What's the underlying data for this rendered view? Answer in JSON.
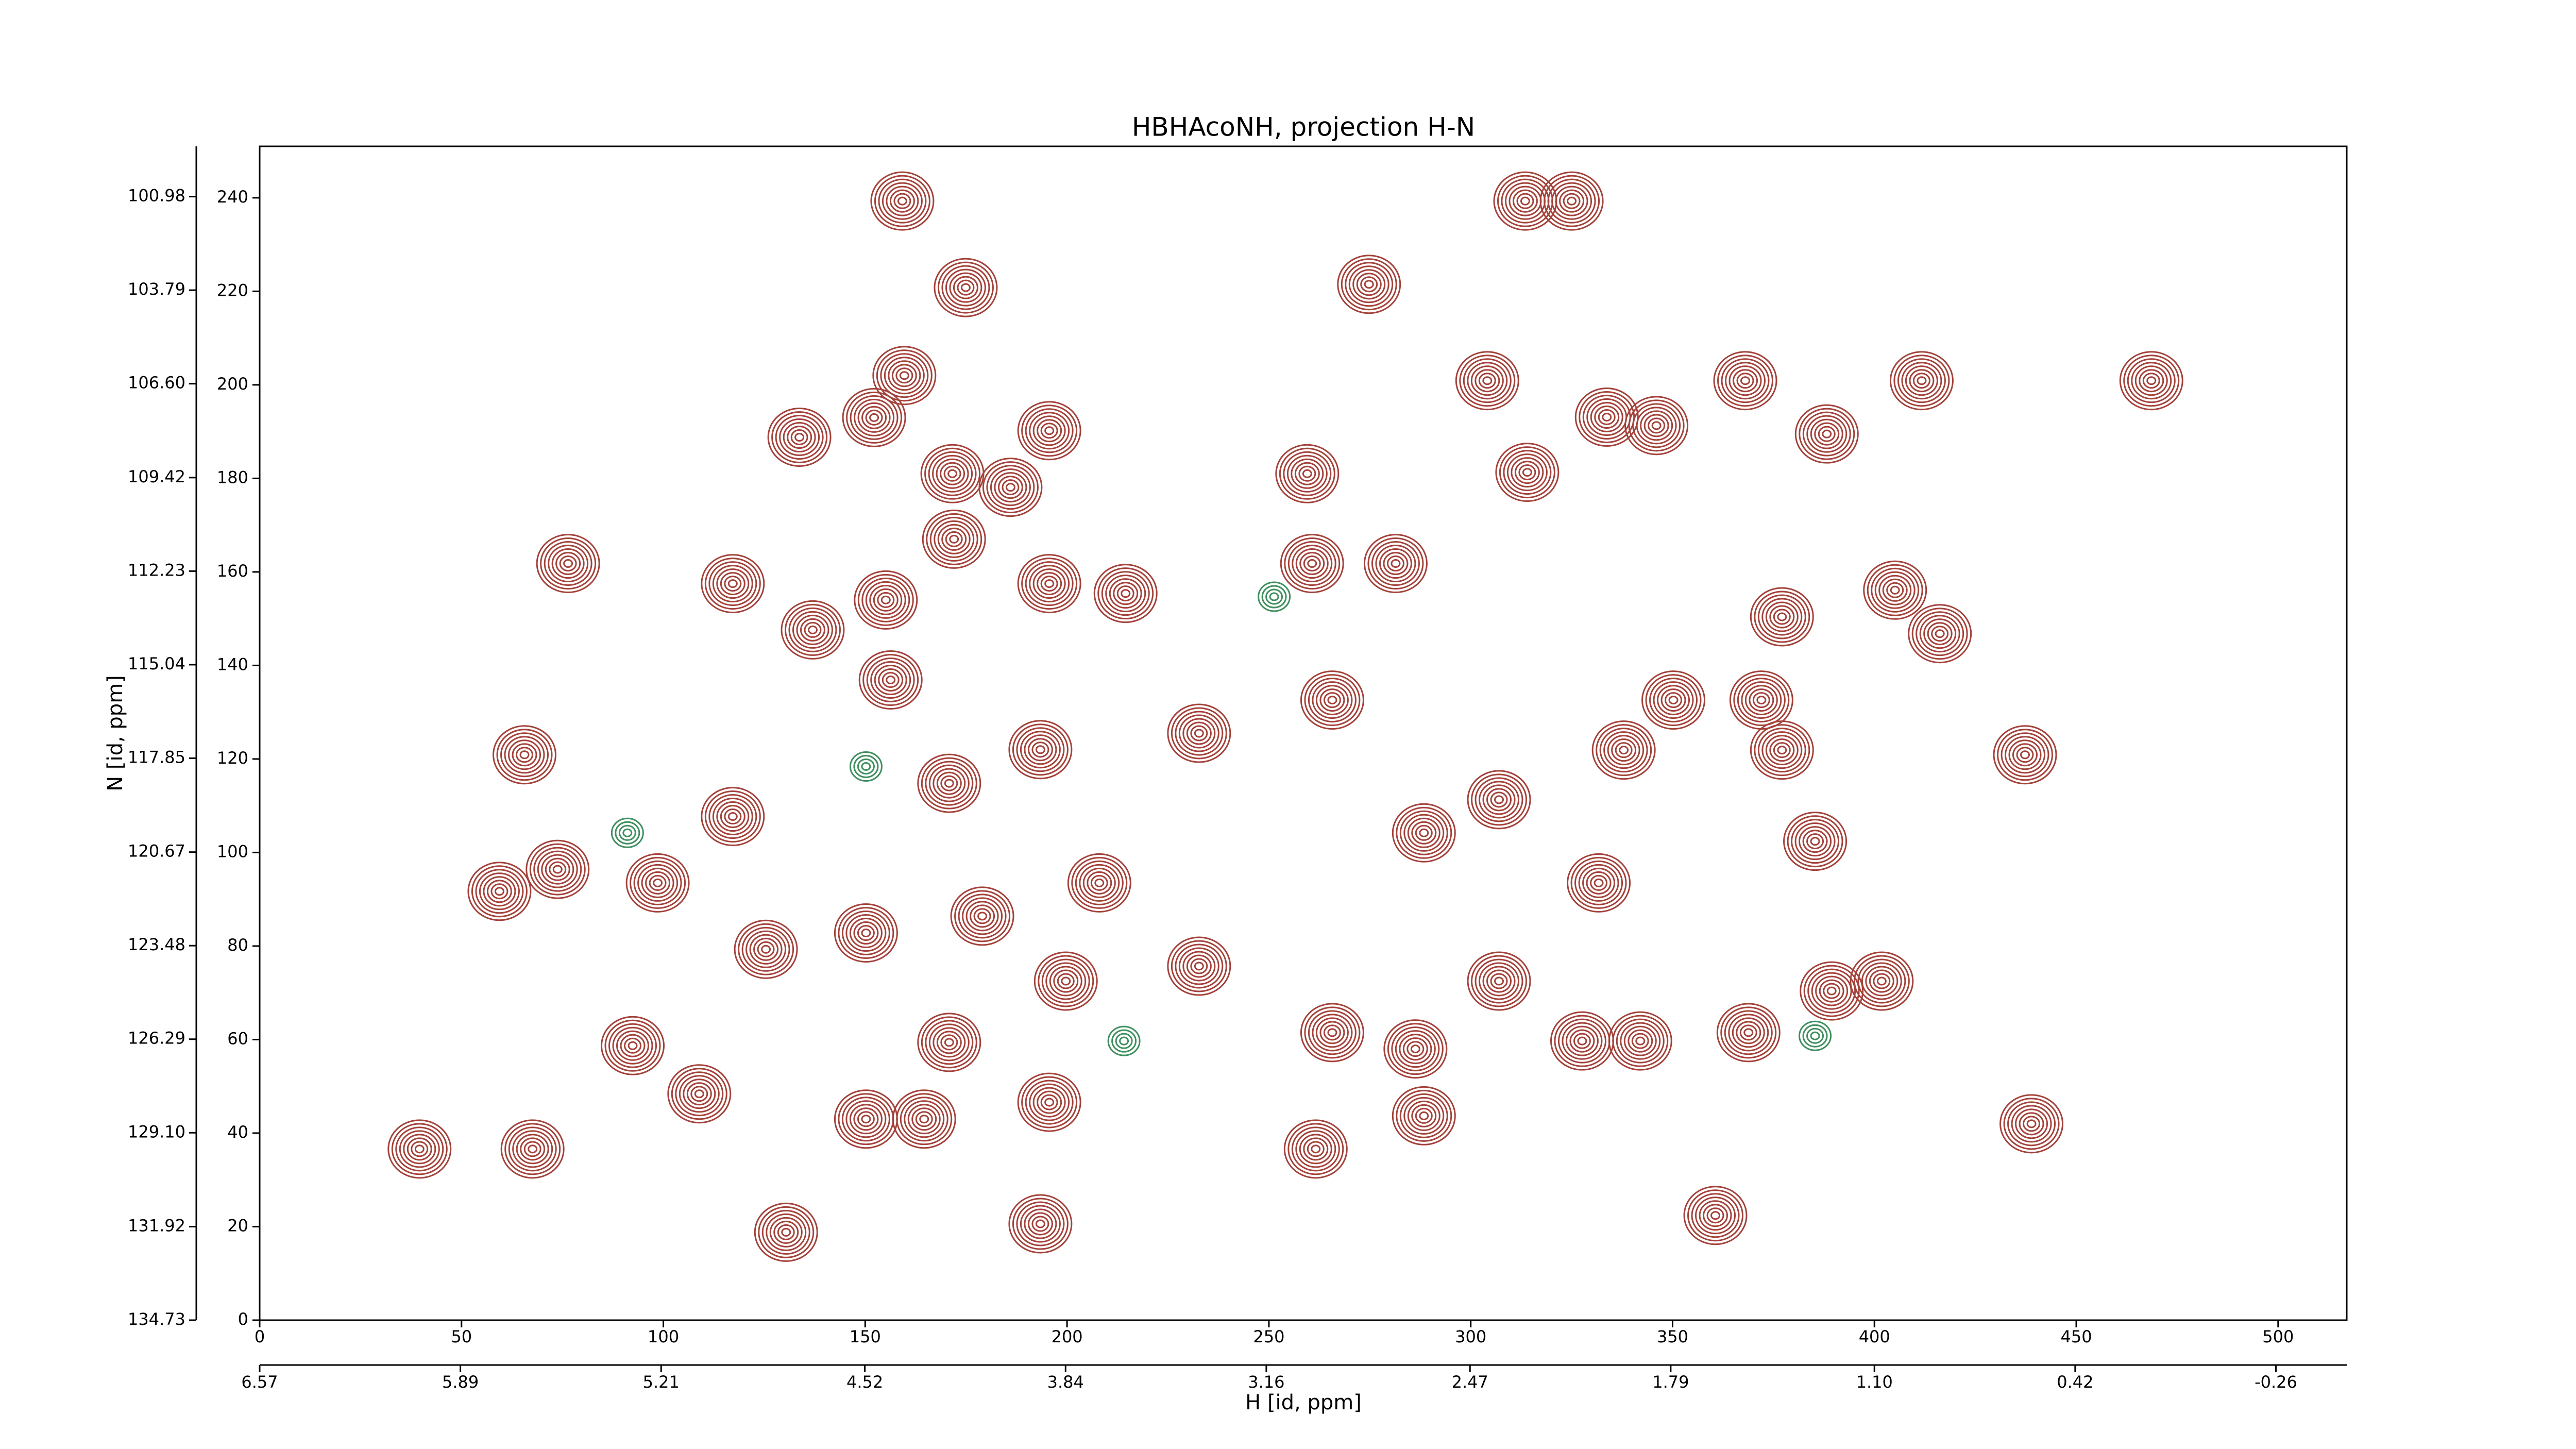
{
  "chart_data": {
    "type": "contour",
    "title": "HBHAcoNH, projection H-N",
    "xlabel": "H [id, ppm]",
    "ylabel": "N [id, ppm]",
    "xlim": [
      0,
      517
    ],
    "ylim": [
      0,
      251
    ],
    "xticks": [
      0,
      50,
      100,
      150,
      200,
      250,
      300,
      350,
      400,
      450,
      500
    ],
    "yticks": [
      0,
      20,
      40,
      60,
      80,
      100,
      120,
      140,
      160,
      180,
      200,
      220,
      240
    ],
    "x2lim": [
      6.57,
      -0.5
    ],
    "x2ticks": [
      6.57,
      5.89,
      5.21,
      4.52,
      3.84,
      3.16,
      2.47,
      1.79,
      {
        "value": 1.1,
        "label": "1.10"
      },
      0.42,
      -0.26
    ],
    "y2lim": [
      134.73,
      99.47
    ],
    "y2ticks": [
      134.73,
      131.92,
      {
        "value": 129.1,
        "label": "129.10"
      },
      126.29,
      123.48,
      120.67,
      117.85,
      115.04,
      112.23,
      109.42,
      {
        "value": 106.6,
        "label": "106.60"
      },
      103.79,
      100.98
    ],
    "positive": {
      "color": "#a3423a",
      "x": [
        159.2,
        274.8,
        313.5,
        325,
        174.9,
        159.7,
        133.7,
        152.2,
        195.6,
        171.6,
        186,
        172,
        155.1,
        137,
        117.2,
        76.4,
        214.5,
        195.6,
        259.5,
        260.7,
        281.4,
        304.1,
        314,
        333.7,
        346,
        368,
        388.2,
        411.7,
        405.1,
        416.2,
        468.6,
        377.1,
        437.3,
        65.6,
        59.4,
        73.8,
        98.6,
        92.4,
        108.9,
        39.6,
        67.6,
        130.4,
        193.4,
        195.6,
        170.8,
        150.2,
        164.6,
        156.3,
        170.8,
        193.4,
        208,
        232.7,
        199.7,
        150.2,
        125.4,
        117.2,
        288.4,
        307,
        307,
        327.6,
        342,
        360.6,
        385.3,
        401.8,
        389.4,
        368.8,
        438.9,
        350.2,
        372,
        377.1,
        337.9,
        265.7,
        286.3,
        261.6,
        288.4,
        331.7,
        265.7,
        232.7,
        179
      ],
      "y": [
        239.3,
        221.5,
        239.3,
        239.3,
        220.8,
        202,
        188.8,
        193,
        190.2,
        181,
        178.1,
        167,
        154,
        147.6,
        157.5,
        161.8,
        155.4,
        157.5,
        181,
        161.8,
        161.8,
        200.9,
        181.3,
        193.1,
        191.3,
        200.9,
        189.5,
        200.9,
        156.1,
        146.8,
        200.9,
        150.4,
        120.9,
        120.9,
        91.7,
        96.4,
        93.5,
        58.7,
        48.4,
        36.6,
        36.6,
        18.8,
        20.6,
        46.6,
        59.4,
        43,
        43,
        136.9,
        114.8,
        122,
        93.5,
        75.7,
        72.5,
        82.8,
        79.3,
        107.7,
        104.2,
        111.3,
        72.5,
        59.7,
        59.7,
        22.4,
        102.4,
        72.5,
        70.4,
        61.5,
        42,
        132.6,
        132.6,
        121.9,
        121.9,
        61.5,
        58,
        36.6,
        43.7,
        93.5,
        132.6,
        125.5,
        86.4
      ]
    },
    "negative": {
      "color": "#3f8f5f",
      "x": [
        251.3,
        214.1,
        91.1,
        385.3,
        150.2
      ],
      "y": [
        154.7,
        59.7,
        104.2,
        60.8,
        118.4
      ]
    }
  }
}
